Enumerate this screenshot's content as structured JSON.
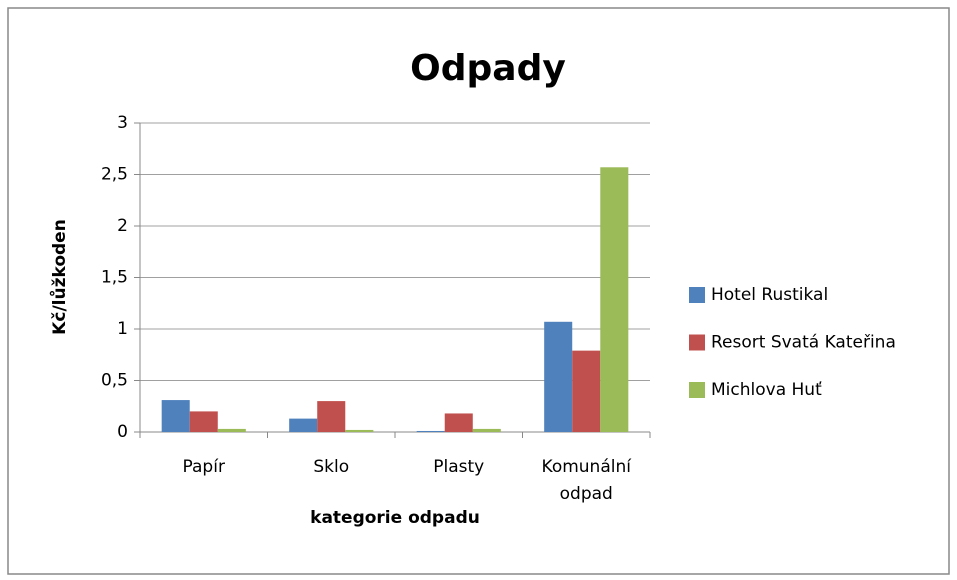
{
  "chart_data": {
    "type": "bar",
    "title": "Odpady",
    "x_label": "kategorie odpadu",
    "y_label": "Kč/lůžkoden",
    "categories": [
      "Papír",
      "Sklo",
      "Plasty",
      "Komunální odpad"
    ],
    "series": [
      {
        "name": "Hotel Rustikal",
        "color": "#4f81bd",
        "values": [
          0.31,
          0.13,
          0.01,
          1.07
        ]
      },
      {
        "name": "Resort Svatá Kateřina",
        "color": "#c0504d",
        "values": [
          0.2,
          0.3,
          0.18,
          0.79
        ]
      },
      {
        "name": "Michlova Huť",
        "color": "#9bbb59",
        "values": [
          0.03,
          0.02,
          0.03,
          2.57
        ]
      }
    ],
    "ylim": [
      0,
      3
    ],
    "yticks": [
      0,
      {
        "value": 0.5,
        "label": "0,5"
      },
      1,
      {
        "value": 1.5,
        "label": "1,5"
      },
      2,
      {
        "value": 2.5,
        "label": "2,5"
      },
      3
    ],
    "grid": true,
    "legend": "right"
  }
}
